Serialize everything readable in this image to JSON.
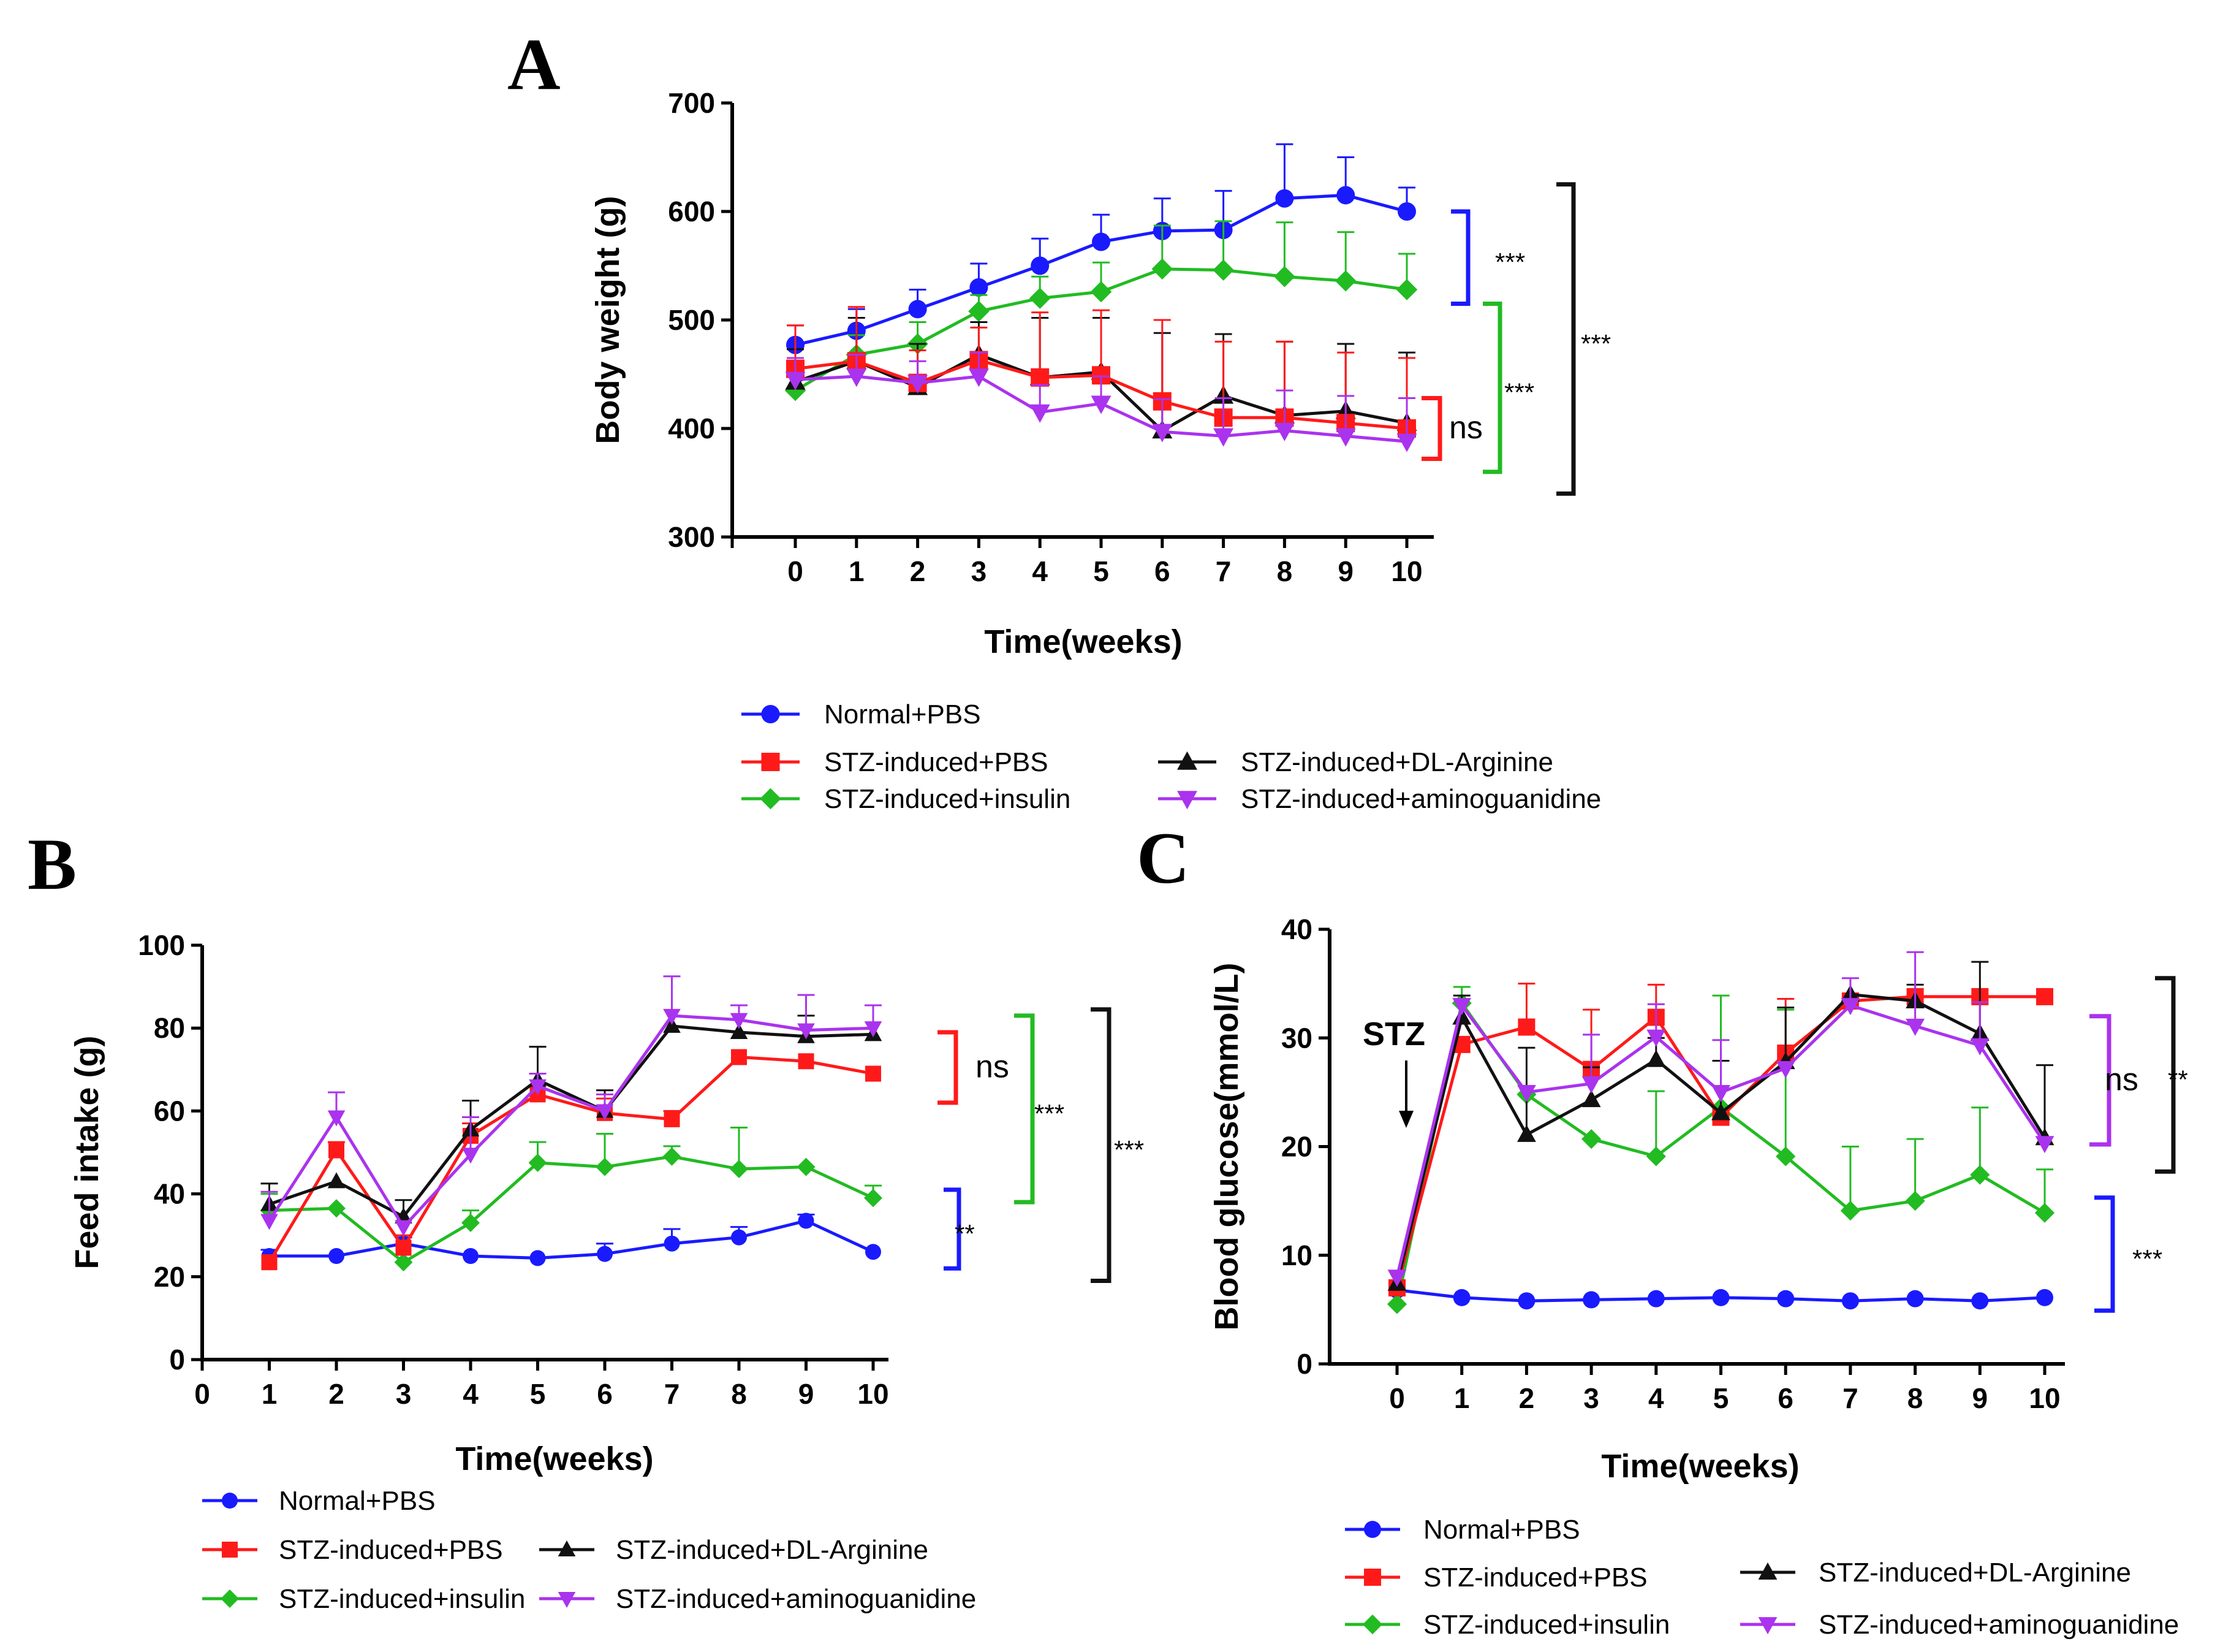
{
  "colors": {
    "normal_pbs": "#1a1aff",
    "stz_pbs": "#ff1a1a",
    "stz_insulin": "#22bb22",
    "stz_arginine": "#111111",
    "stz_aminoguanidine": "#aa33ee"
  },
  "legend": [
    {
      "key": "normal_pbs",
      "label": "Normal+PBS",
      "marker": "circle"
    },
    {
      "key": "stz_pbs",
      "label": "STZ-induced+PBS",
      "marker": "square"
    },
    {
      "key": "stz_insulin",
      "label": "STZ-induced+insulin",
      "marker": "diamond"
    },
    {
      "key": "stz_arginine",
      "label": "STZ-induced+DL-Arginine",
      "marker": "triangle-up"
    },
    {
      "key": "stz_aminoguanidine",
      "label": "STZ-induced+aminoguanidine",
      "marker": "triangle-down"
    }
  ],
  "chart_data": [
    {
      "panel": "A",
      "type": "line",
      "title": "",
      "xlabel": "Time(weeks)",
      "ylabel": "Body weight (g)",
      "xlim": [
        -1,
        10.5
      ],
      "ylim": [
        300,
        700
      ],
      "xticks": [
        0,
        1,
        2,
        3,
        4,
        5,
        6,
        7,
        8,
        9,
        10
      ],
      "yticks": [
        300,
        400,
        500,
        600,
        700
      ],
      "x": [
        0,
        1,
        2,
        3,
        4,
        5,
        6,
        7,
        8,
        9,
        10
      ],
      "series": [
        {
          "key": "normal_pbs",
          "name": "Normal+PBS",
          "values": [
            477,
            490,
            510,
            530,
            550,
            572,
            582,
            583,
            612,
            615,
            600
          ],
          "errors": [
            18,
            20,
            18,
            22,
            25,
            25,
            30,
            36,
            50,
            35,
            22
          ]
        },
        {
          "key": "stz_insulin",
          "name": "STZ-induced+insulin",
          "values": [
            435,
            468,
            478,
            508,
            520,
            526,
            547,
            546,
            540,
            536,
            528
          ],
          "errors": [
            15,
            18,
            20,
            15,
            20,
            27,
            40,
            45,
            50,
            45,
            33
          ]
        },
        {
          "key": "stz_arginine",
          "name": "STZ-induced+DL-Arginine",
          "values": [
            443,
            462,
            438,
            468,
            447,
            452,
            398,
            430,
            412,
            416,
            405
          ],
          "errors": [
            30,
            40,
            40,
            30,
            55,
            50,
            90,
            57,
            68,
            62,
            65
          ]
        },
        {
          "key": "stz_pbs",
          "name": "STZ-induced+PBS",
          "values": [
            455,
            462,
            442,
            463,
            447,
            449,
            425,
            410,
            410,
            405,
            400
          ],
          "errors": [
            40,
            50,
            30,
            30,
            60,
            60,
            75,
            70,
            70,
            65,
            65
          ]
        },
        {
          "key": "stz_aminoguanidine",
          "name": "STZ-induced+aminoguanidine",
          "values": [
            445,
            448,
            442,
            448,
            415,
            423,
            397,
            393,
            398,
            393,
            388
          ],
          "errors": [
            20,
            20,
            20,
            22,
            25,
            25,
            30,
            35,
            37,
            37,
            40
          ]
        }
      ],
      "annotations": [
        {
          "label": "***",
          "color_key": "normal_pbs",
          "from": 600,
          "to": 515
        },
        {
          "label": "***",
          "color_key": "stz_insulin",
          "from": 515,
          "to": 360
        },
        {
          "label": "***",
          "color_key": "stz_arginine",
          "from": 625,
          "to": 340
        },
        {
          "label": "ns",
          "color_key": "stz_pbs",
          "from": 428,
          "to": 372
        }
      ]
    },
    {
      "panel": "B",
      "type": "line",
      "title": "",
      "xlabel": "Time(weeks)",
      "ylabel": "Feed intake (g)",
      "xlim": [
        0,
        10.5
      ],
      "ylim": [
        0,
        100
      ],
      "xticks": [
        0,
        1,
        2,
        3,
        4,
        5,
        6,
        7,
        8,
        9,
        10
      ],
      "yticks": [
        0,
        20,
        40,
        60,
        80,
        100
      ],
      "x": [
        1,
        2,
        3,
        4,
        5,
        6,
        7,
        8,
        9,
        10
      ],
      "series": [
        {
          "key": "normal_pbs",
          "name": "Normal+PBS",
          "values": [
            25,
            25,
            28,
            25,
            24.5,
            25.5,
            28,
            29.5,
            33.5,
            26
          ],
          "errors": [
            1.5,
            0,
            1.5,
            0,
            0,
            2.5,
            3.5,
            2.5,
            1.5,
            0
          ]
        },
        {
          "key": "stz_insulin",
          "name": "STZ-induced+insulin",
          "values": [
            36,
            36.5,
            23.5,
            33,
            47.5,
            46.5,
            49,
            46,
            46.5,
            39
          ],
          "errors": [
            4,
            0,
            0,
            3,
            5,
            8,
            2.5,
            10,
            0,
            3
          ]
        },
        {
          "key": "stz_pbs",
          "name": "STZ-induced+PBS",
          "values": [
            23.5,
            50.5,
            27,
            54,
            64,
            59.5,
            58,
            73,
            72,
            69
          ],
          "errors": [
            0,
            2,
            3,
            3,
            5,
            3.5,
            2,
            0,
            0,
            0
          ]
        },
        {
          "key": "stz_arginine",
          "name": "STZ-induced+DL-Arginine",
          "values": [
            37.5,
            43,
            34.5,
            55.5,
            67.5,
            60,
            80.5,
            79,
            78,
            78.5
          ],
          "errors": [
            5,
            0,
            4,
            7,
            8,
            5,
            0,
            0,
            5,
            0
          ]
        },
        {
          "key": "stz_aminoguanidine",
          "name": "STZ-induced+aminoguanidine",
          "values": [
            33.5,
            58.5,
            32,
            49.5,
            66,
            60,
            83,
            82,
            79.5,
            80
          ],
          "errors": [
            7,
            6,
            0,
            9,
            3,
            4,
            9.5,
            3.5,
            8.5,
            5.5
          ]
        }
      ],
      "annotations": [
        {
          "label": "ns",
          "color_key": "stz_pbs",
          "from": 79,
          "to": 62
        },
        {
          "label": "***",
          "color_key": "stz_insulin",
          "from": 83,
          "to": 38
        },
        {
          "label": "***",
          "color_key": "stz_arginine",
          "from": 84.5,
          "to": 19
        },
        {
          "label": "**",
          "color_key": "normal_pbs",
          "from": 41,
          "to": 22
        }
      ]
    },
    {
      "panel": "C",
      "type": "line",
      "title": "",
      "xlabel": "Time(weeks)",
      "ylabel": "Blood glucose(mmol/L)",
      "xlim": [
        -1,
        10.3
      ],
      "ylim": [
        0,
        40
      ],
      "xticks": [
        0,
        1,
        2,
        3,
        4,
        5,
        6,
        7,
        8,
        9,
        10
      ],
      "yticks": [
        0,
        10,
        20,
        30,
        40
      ],
      "x": [
        0,
        1,
        2,
        3,
        4,
        5,
        6,
        7,
        8,
        9,
        10
      ],
      "series": [
        {
          "key": "normal_pbs",
          "name": "Normal+PBS",
          "values": [
            6.8,
            6.1,
            5.8,
            5.9,
            6,
            6.1,
            6,
            5.8,
            6,
            5.8,
            6.1
          ],
          "errors": [
            0,
            0,
            0,
            0,
            0,
            0,
            0,
            0,
            0,
            0,
            0
          ]
        },
        {
          "key": "stz_insulin",
          "name": "STZ-induced+insulin",
          "values": [
            5.5,
            33.2,
            24.8,
            20.7,
            19.1,
            23.6,
            19.1,
            14.1,
            15,
            17.4,
            13.9
          ],
          "errors": [
            0,
            1.5,
            0,
            0,
            6,
            10.3,
            13.5,
            5.9,
            5.7,
            6.2,
            4
          ]
        },
        {
          "key": "stz_pbs",
          "name": "STZ-induced+PBS",
          "values": [
            7,
            29.4,
            31,
            27.1,
            31.9,
            22.7,
            28.6,
            33.4,
            33.8,
            33.8,
            33.8
          ],
          "errors": [
            0,
            0,
            4,
            5.5,
            3,
            0,
            5,
            0,
            0,
            0,
            0
          ]
        },
        {
          "key": "stz_arginine",
          "name": "STZ-induced+DL-Arginine",
          "values": [
            7.4,
            31.9,
            21.1,
            24.3,
            28,
            23.1,
            27.8,
            34,
            33.4,
            30.4,
            20.8
          ],
          "errors": [
            0,
            2,
            8,
            3,
            2,
            4.8,
            5,
            0,
            1.5,
            6.6,
            6.7
          ]
        },
        {
          "key": "stz_aminoguanidine",
          "name": "STZ-induced+aminoguanidine",
          "values": [
            8,
            33,
            25,
            25.8,
            30.1,
            25,
            27.2,
            33,
            31.1,
            29.3,
            20.3
          ],
          "errors": [
            0,
            0,
            0,
            4.5,
            3,
            4.8,
            0,
            2.5,
            6.8,
            4,
            0
          ]
        }
      ],
      "annotations": [
        {
          "label": "ns",
          "color_key": "stz_aminoguanidine",
          "from": 32,
          "to": 20.2
        },
        {
          "label": "**",
          "color_key": "stz_arginine",
          "from": 35.5,
          "to": 17.7
        },
        {
          "label": "***",
          "color_key": "normal_pbs",
          "from": 15.3,
          "to": 4.9
        }
      ],
      "marker_note": {
        "label": "STZ",
        "x": 0
      }
    }
  ]
}
